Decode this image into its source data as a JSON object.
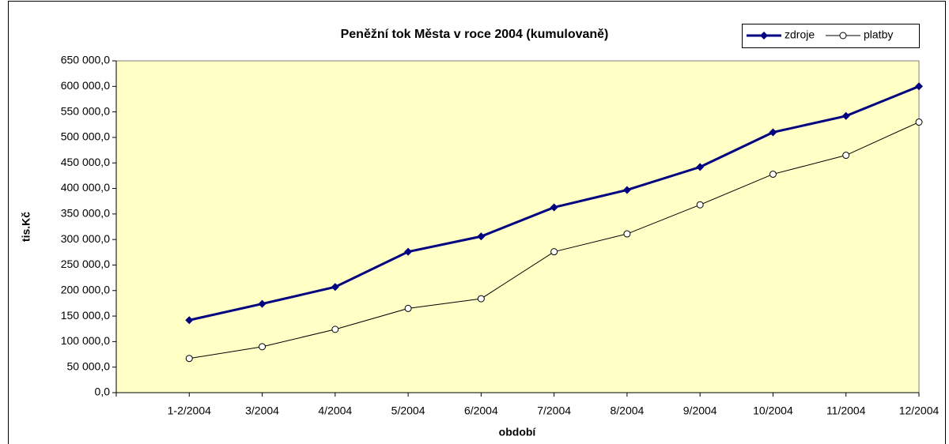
{
  "chart_data": {
    "type": "line",
    "title": "Peněžní tok Města v roce 2004 (kumulovaně)",
    "x_label": "období",
    "y_label": "tis.Kč",
    "categories": [
      "1-2/2004",
      "3/2004",
      "4/2004",
      "5/2004",
      "6/2004",
      "7/2004",
      "8/2004",
      "9/2004",
      "10/2004",
      "11/2004",
      "12/2004"
    ],
    "series": [
      {
        "name": "zdroje",
        "color": "#000080",
        "marker": "diamond",
        "values": [
          142000,
          174000,
          207000,
          276000,
          306000,
          363000,
          397000,
          442000,
          510000,
          542000,
          600000
        ]
      },
      {
        "name": "platby",
        "color": "#000000",
        "marker": "circle",
        "values": [
          67000,
          90000,
          124000,
          165000,
          184000,
          276000,
          311000,
          368000,
          428000,
          465000,
          530000
        ]
      }
    ],
    "ylim": [
      0,
      650000
    ],
    "yticks": [
      {
        "value": 0,
        "label": "0,0"
      },
      {
        "value": 50000,
        "label": "50 000,0"
      },
      {
        "value": 100000,
        "label": "100 000,0"
      },
      {
        "value": 150000,
        "label": "150 000,0"
      },
      {
        "value": 200000,
        "label": "200 000,0"
      },
      {
        "value": 250000,
        "label": "250 000,0"
      },
      {
        "value": 300000,
        "label": "300 000,0"
      },
      {
        "value": 350000,
        "label": "350 000,0"
      },
      {
        "value": 400000,
        "label": "400 000,0"
      },
      {
        "value": 450000,
        "label": "450 000,0"
      },
      {
        "value": 500000,
        "label": "500 000,0"
      },
      {
        "value": 550000,
        "label": "550 000,0"
      },
      {
        "value": 600000,
        "label": "600 000,0"
      },
      {
        "value": 650000,
        "label": "650 000,0"
      }
    ],
    "legend": "top-right",
    "background": "#ffffc6"
  }
}
